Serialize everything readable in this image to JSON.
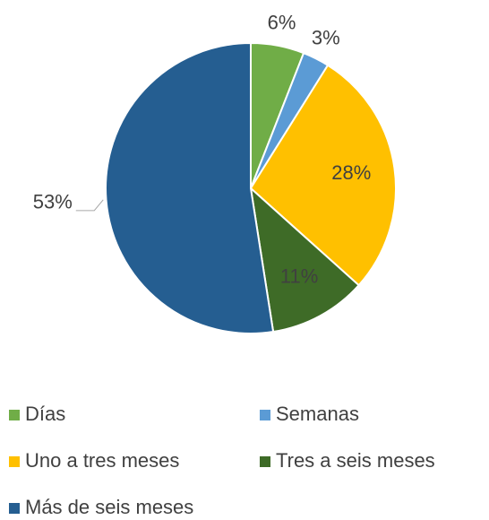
{
  "chart_data": {
    "type": "pie",
    "categories": [
      "Días",
      "Semanas",
      "Uno a tres meses",
      "Tres a seis meses",
      "Más de seis meses"
    ],
    "values": [
      6,
      3,
      28,
      11,
      53
    ],
    "value_labels": [
      "6%",
      "3%",
      "28%",
      "11%",
      "53%"
    ],
    "colors": [
      "#70ad47",
      "#5b9bd5",
      "#ffc000",
      "#3e6b27",
      "#255e91"
    ],
    "legend": "bottom"
  }
}
